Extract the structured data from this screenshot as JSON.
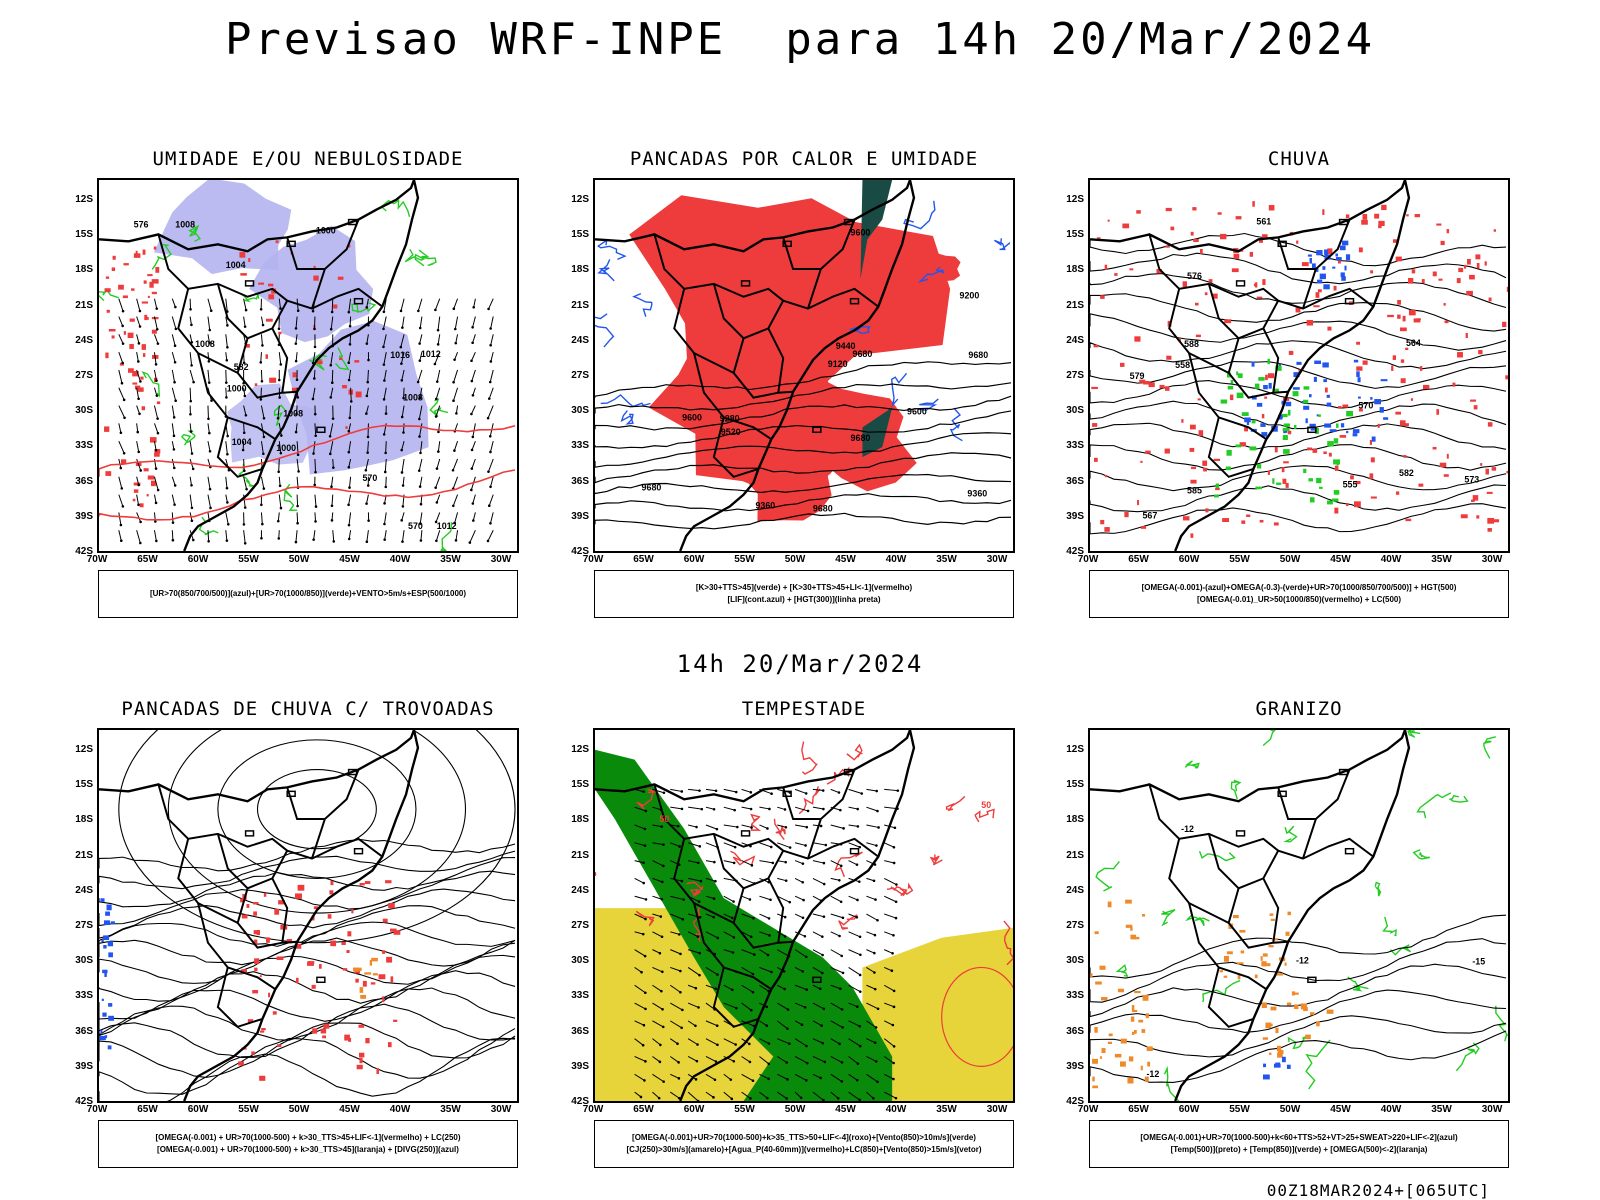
{
  "main_title": "Previsao WRF-INPE  para 14h 20/Mar/2024",
  "mid_title": "14h 20/Mar/2024",
  "footer": "00Z18MAR2024+[065UTC]",
  "lat_labels": [
    "12S",
    "15S",
    "18S",
    "21S",
    "24S",
    "27S",
    "30S",
    "33S",
    "36S",
    "39S",
    "42S"
  ],
  "lon_labels": [
    "70W",
    "65W",
    "60W",
    "55W",
    "50W",
    "45W",
    "40W",
    "35W",
    "30W"
  ],
  "colors": {
    "red": "#ee3b3b",
    "green": "#22cc22",
    "blue": "#2255ee",
    "lavender": "#b4b4f0",
    "yellow": "#e6d43a",
    "orange": "#ee8a2a",
    "darkgreen": "#0a8a0a"
  },
  "panels": [
    {
      "id": "umidade",
      "title": "UMIDADE E/OU NEBULOSIDADE",
      "legend": [
        "[UR>70(850/700/500)](azul)+[UR>70(1000/850)](verde)+VENTO>5m/s+ESP(500/1000)"
      ],
      "contour_labels": [
        "1008",
        "1008",
        "1008",
        "1008",
        "1012",
        "1004",
        "1000",
        "1000",
        "1004",
        "1016",
        "1012",
        "1000",
        "576",
        "570",
        "582",
        "570"
      ]
    },
    {
      "id": "pancadas-calor",
      "title": "PANCADAS POR CALOR E UMIDADE",
      "legend": [
        "[K>30+TTS>45](verde) + [K>30+TTS>45+LI<-1](vermelho)",
        "[LIF](cont.azul) + [HGT(300)](linha preta)"
      ],
      "contour_labels": [
        "9680",
        "9680",
        "9680",
        "9680",
        "9680",
        "9600",
        "9600",
        "9520",
        "9440",
        "9360",
        "9360",
        "9280",
        "9200",
        "9120",
        "9600"
      ]
    },
    {
      "id": "chuva",
      "title": "CHUVA",
      "legend": [
        "[OMEGA(-0.001)-(azul)+OMEGA(-0.3)-(verde)+UR>70(1000/850/700/500)] + HGT(500)",
        "[OMEGA(-0.01)_UR>50(1000/850)(vermelho) + LC(500)"
      ],
      "contour_labels": [
        "588",
        "585",
        "582",
        "579",
        "576",
        "573",
        "570",
        "567",
        "564",
        "561",
        "558",
        "555"
      ]
    },
    {
      "id": "trovoadas",
      "title": "PANCADAS DE CHUVA C/ TROVOADAS",
      "legend": [
        "[OMEGA(-0.001) + UR>70(1000-500) + k>30_TTS>45+LIF<-1](vermelho) + LC(250)",
        "[OMEGA(-0.001) + UR>70(1000-500) + k>30_TTS>45](laranja) + [DIVG(250)](azul)"
      ],
      "contour_labels": []
    },
    {
      "id": "tempestade",
      "title": "TEMPESTADE",
      "legend": [
        "[OMEGA(-0.001)+UR>70(1000-500)+k>35_TTS>50+LIF<-4](roxo)+[Vento(850)>10m/s](verde)",
        "[CJ(250)>30m/s](amarelo)+[Agua_P(40-60mm)](vermelho)+LC(850)+[Vento(850)>15m/s](vetor)"
      ],
      "contour_labels": [
        "50",
        "50"
      ]
    },
    {
      "id": "granizo",
      "title": "GRANIZO",
      "legend": [
        "[OMEGA(-0.001)+UR>70(1000-500)+k<60+TTS>52+VT>25+SWEAT>220+LIF<-2](azul)",
        "[Temp(500)](preto) + [Temp(850)](verde) + [OMEGA(500)<-2](laranja)"
      ],
      "contour_labels": [
        "-12",
        "-15",
        "-12",
        "-12"
      ]
    }
  ]
}
